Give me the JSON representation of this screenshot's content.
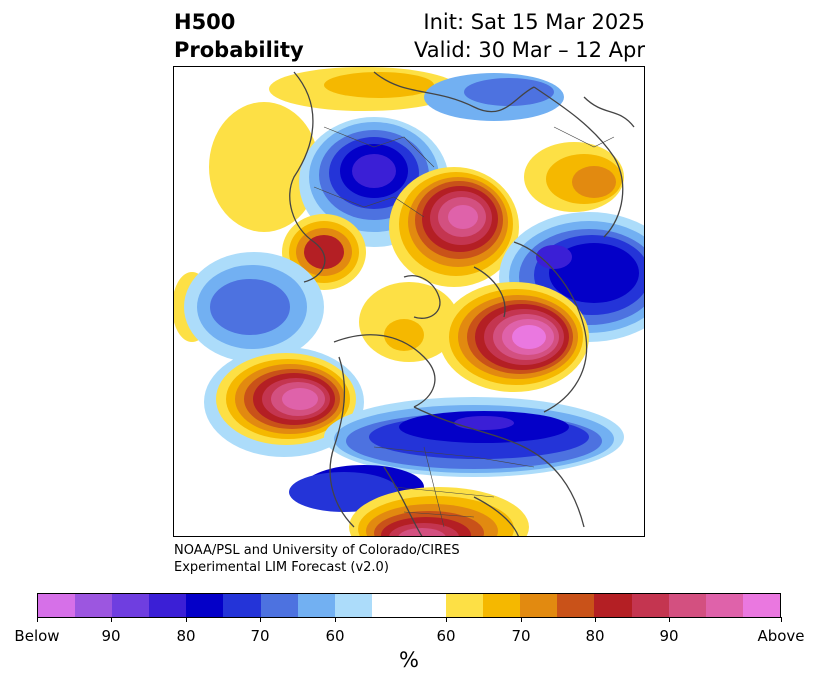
{
  "title": {
    "left_line1": "H500",
    "left_line2": "Probability",
    "right_line1": "Init: Sat 15 Mar 2025",
    "right_line2": "Valid: 30 Mar – 12 Apr"
  },
  "credit": {
    "line1": "NOAA/PSL and University of Colorado/CIRES",
    "line2": "Experimental LIM Forecast (v2.0)"
  },
  "colorbar": {
    "unit": "%",
    "colors": [
      "#d670e8",
      "#9c56e0",
      "#6f3ee0",
      "#3b1fd6",
      "#0400c8",
      "#2434d8",
      "#4d72e0",
      "#72b0f2",
      "#acdcfa",
      "#ffffff",
      "#ffffff",
      "#fde045",
      "#f5b800",
      "#e28a10",
      "#c95219",
      "#b41f24",
      "#c43550",
      "#d35080",
      "#df62aa",
      "#ea78e0"
    ],
    "labels": [
      "Below",
      "90",
      "80",
      "70",
      "60",
      "60",
      "70",
      "80",
      "90",
      "Above"
    ]
  },
  "map": {
    "projection": "north-polar-stereographic",
    "palette": {
      "above_light": "#fde045",
      "above_mid": "#f5b800",
      "above_orange": "#e28a10",
      "above_red": "#b41f24",
      "above_pink": "#d35080",
      "above_max": "#ea78e0",
      "below_light": "#acdcfa",
      "below_mid": "#72b0f2",
      "below_blue": "#2434d8",
      "below_deep": "#0400c8",
      "below_max": "#6f3ee0",
      "coast": "#444444"
    }
  }
}
